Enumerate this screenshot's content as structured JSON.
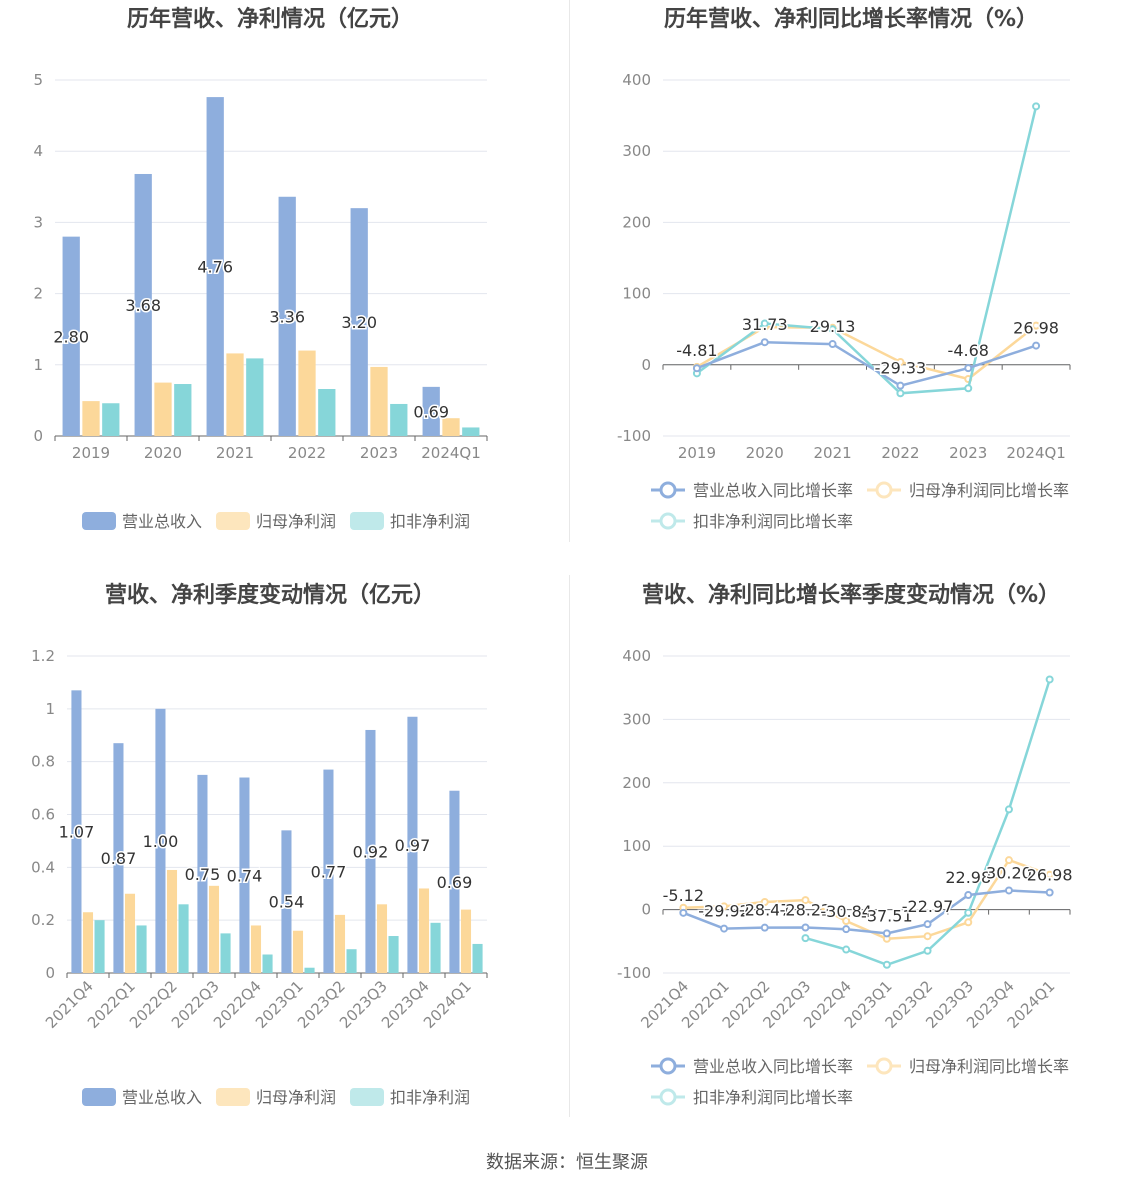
{
  "colors": {
    "revenue": "#8eaedd",
    "net_profit": "#fcd89a",
    "deducted_profit": "#86d6d9",
    "revenue_light": "#bccfec",
    "net_profit_light": "#fde6bd",
    "deducted_profit_light": "#bfe9ea"
  },
  "legend_labels": {
    "revenue": "营业总收入",
    "net_profit": "归母净利润",
    "deducted_profit": "扣非净利润",
    "revenue_growth": "营业总收入同比增长率",
    "net_profit_growth": "归母净利润同比增长率",
    "deducted_profit_growth": "扣非净利润同比增长率"
  },
  "source": "数据来源：恒生聚源",
  "chart_data": [
    {
      "id": "annual_bar",
      "type": "bar",
      "title": "历年营收、净利情况（亿元）",
      "categories": [
        "2019",
        "2020",
        "2021",
        "2022",
        "2023",
        "2024Q1"
      ],
      "series": [
        {
          "name": "营业总收入",
          "values": [
            2.8,
            3.68,
            4.76,
            3.36,
            3.2,
            0.69
          ],
          "labels": [
            "2.80",
            "3.68",
            "4.76",
            "3.36",
            "3.20",
            "0.69"
          ]
        },
        {
          "name": "归母净利润",
          "values": [
            0.49,
            0.75,
            1.16,
            1.2,
            0.97,
            0.25
          ]
        },
        {
          "name": "扣非净利润",
          "values": [
            0.46,
            0.73,
            1.09,
            0.66,
            0.45,
            0.12
          ]
        }
      ],
      "ylim": [
        0,
        5
      ],
      "yticks": [
        "0",
        "1",
        "2",
        "3",
        "4",
        "5"
      ],
      "grid": true,
      "legend": "bottom"
    },
    {
      "id": "annual_line",
      "type": "line",
      "title": "历年营收、净利同比增长率情况（%）",
      "categories": [
        "2019",
        "2020",
        "2021",
        "2022",
        "2023",
        "2024Q1"
      ],
      "series": [
        {
          "name": "营业总收入同比增长率",
          "values": [
            -4.81,
            31.73,
            29.13,
            -29.33,
            -4.68,
            26.98
          ],
          "labels": [
            "-4.81",
            "31.73",
            "29.13",
            "-29.33",
            "-4.68",
            "26.98"
          ]
        },
        {
          "name": "归母净利润同比增长率",
          "values": [
            -3,
            53,
            52,
            4,
            -20,
            55
          ]
        },
        {
          "name": "扣非净利润同比增长率",
          "values": [
            -12,
            58,
            50,
            -40,
            -33,
            363
          ]
        }
      ],
      "ylim": [
        -100,
        400
      ],
      "yticks": [
        "-100",
        "0",
        "100",
        "200",
        "300",
        "400"
      ],
      "grid": true,
      "legend": "bottom"
    },
    {
      "id": "quarterly_bar",
      "type": "bar",
      "title": "营收、净利季度变动情况（亿元）",
      "categories": [
        "2021Q4",
        "2022Q1",
        "2022Q2",
        "2022Q3",
        "2022Q4",
        "2023Q1",
        "2023Q2",
        "2023Q3",
        "2023Q4",
        "2024Q1"
      ],
      "series": [
        {
          "name": "营业总收入",
          "values": [
            1.07,
            0.87,
            1.0,
            0.75,
            0.74,
            0.54,
            0.77,
            0.92,
            0.97,
            0.69
          ],
          "labels": [
            "1.07",
            "0.87",
            "1.00",
            "0.75",
            "0.74",
            "0.54",
            "0.77",
            "0.92",
            "0.97",
            "0.69"
          ]
        },
        {
          "name": "归母净利润",
          "values": [
            0.23,
            0.3,
            0.39,
            0.33,
            0.18,
            0.16,
            0.22,
            0.26,
            0.32,
            0.24
          ]
        },
        {
          "name": "扣非净利润",
          "values": [
            0.2,
            0.18,
            0.26,
            0.15,
            0.07,
            0.02,
            0.09,
            0.14,
            0.19,
            0.11
          ]
        }
      ],
      "ylim": [
        0,
        1.2
      ],
      "yticks": [
        "0",
        "0.2",
        "0.4",
        "0.6",
        "0.8",
        "1",
        "1.2"
      ],
      "grid": true,
      "legend": "bottom"
    },
    {
      "id": "quarterly_line",
      "type": "line",
      "title": "营收、净利同比增长率季度变动情况（%）",
      "categories": [
        "2021Q4",
        "2022Q1",
        "2022Q2",
        "2022Q3",
        "2022Q4",
        "2023Q1",
        "2023Q2",
        "2023Q3",
        "2023Q4",
        "2024Q1"
      ],
      "series": [
        {
          "name": "营业总收入同比增长率",
          "values": [
            -5.12,
            -29.92,
            -28.47,
            -28.22,
            -30.84,
            -37.51,
            -22.97,
            22.98,
            30.2,
            26.98
          ],
          "labels": [
            "-5.12",
            "-29.92",
            "-28.47",
            "-28.22",
            "-30.84",
            "-37.51",
            "-22.97",
            "22.98",
            "30.20",
            "26.98"
          ]
        },
        {
          "name": "归母净利润同比增长率",
          "values": [
            3,
            5,
            12,
            15,
            -18,
            -46,
            -42,
            -20,
            78,
            55
          ]
        },
        {
          "name": "扣非净利润同比增长率",
          "values": [
            null,
            null,
            null,
            -45,
            -63,
            -87,
            -65,
            -5,
            158,
            363
          ]
        }
      ],
      "ylim": [
        -100,
        400
      ],
      "yticks": [
        "-100",
        "0",
        "100",
        "200",
        "300",
        "400"
      ],
      "grid": true,
      "legend": "bottom"
    }
  ]
}
